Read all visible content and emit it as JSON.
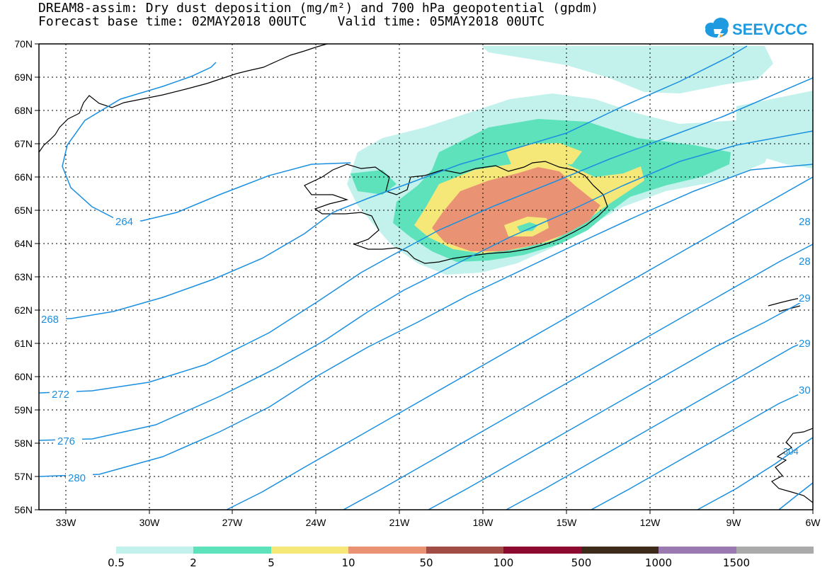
{
  "title": {
    "line1": "DREAM8-assim: Dry dust deposition (mg/m²) and 700 hPa geopotential (gpdm)",
    "line2": "Forecast base time: 02MAY2018 00UTC    Valid time: 05MAY2018 00UTC"
  },
  "logo": {
    "text": "SEEVCCC",
    "color": "#1e9be0",
    "icon": "cloud-logo-icon"
  },
  "map": {
    "lat_labels": [
      "70N",
      "69N",
      "68N",
      "67N",
      "66N",
      "65N",
      "64N",
      "63N",
      "62N",
      "61N",
      "60N",
      "59N",
      "58N",
      "57N",
      "56N"
    ],
    "lon_labels": [
      "33W",
      "30W",
      "27W",
      "24W",
      "21W",
      "18W",
      "15W",
      "12W",
      "9W",
      "6W"
    ],
    "contour_color": "#1a8fe0",
    "contour_labels": [
      "264",
      "268",
      "272",
      "276",
      "280",
      "28",
      "28",
      "29",
      "29",
      "30",
      "304"
    ]
  },
  "colorbar": {
    "colors": [
      "#c3f2ec",
      "#5ee2bc",
      "#f6e878",
      "#ea9374",
      "#a24c46",
      "#8c0a30",
      "#3c2a1a",
      "#9a78b0",
      "#aaaaaa"
    ],
    "labels": [
      "0.5",
      "2",
      "5",
      "10",
      "50",
      "100",
      "500",
      "1000",
      "1500"
    ]
  }
}
